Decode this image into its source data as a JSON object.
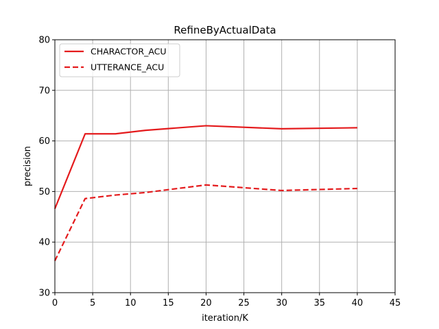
{
  "chart_data": {
    "type": "line",
    "title": "RefineByActualData",
    "xlabel": "iteration/K",
    "ylabel": "precision",
    "xlim": [
      0,
      45
    ],
    "ylim": [
      30,
      80
    ],
    "xticks": [
      0,
      5,
      10,
      15,
      20,
      25,
      30,
      35,
      40,
      45
    ],
    "yticks": [
      30,
      40,
      50,
      60,
      70,
      80
    ],
    "grid": true,
    "legend_position": "top-left",
    "x": [
      0,
      4,
      8,
      12,
      20,
      30,
      40
    ],
    "series": [
      {
        "name": "CHARACTOR_ACU",
        "values": [
          46.6,
          61.4,
          61.4,
          62.1,
          63.0,
          62.4,
          62.6
        ],
        "color": "#e41a1c",
        "style": "solid"
      },
      {
        "name": "UTTERANCE_ACU",
        "values": [
          36.3,
          48.6,
          49.3,
          49.8,
          51.3,
          50.2,
          50.6
        ],
        "color": "#e41a1c",
        "style": "dashed"
      }
    ]
  }
}
